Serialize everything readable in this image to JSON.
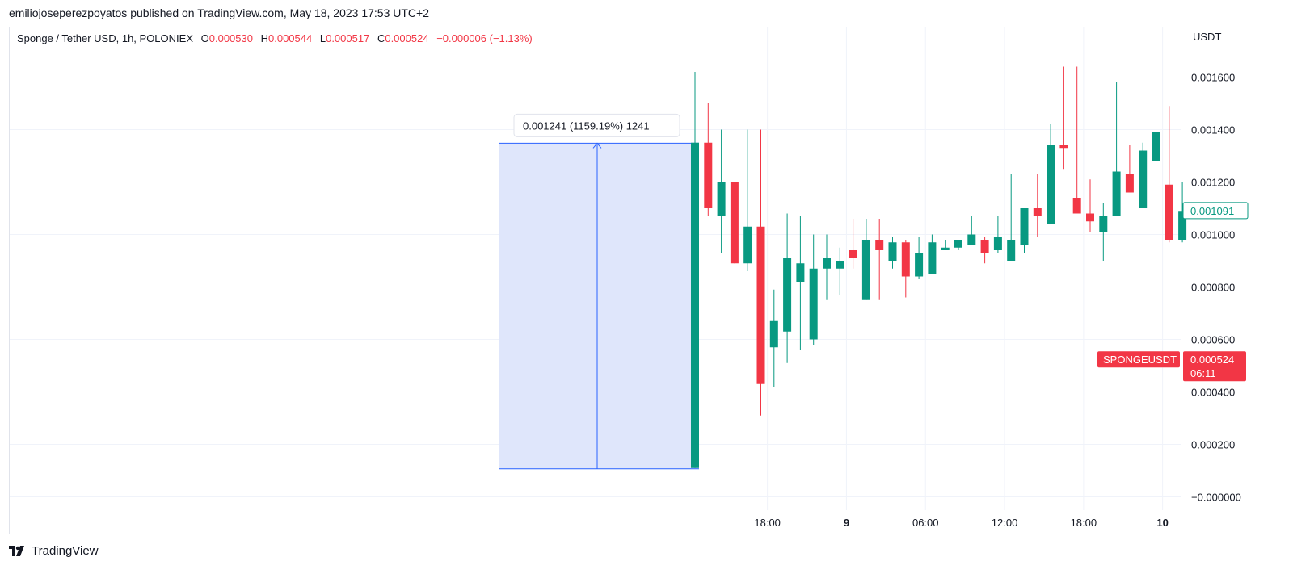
{
  "header": {
    "published_line": "emiliojoseperezpoyatos published on TradingView.com, May 18, 2023 17:53 UTC+2"
  },
  "legend": {
    "symbol": "Sponge / Tether USD, 1h, POLONIEX",
    "o_label": "O",
    "o_value": "0.000530",
    "h_label": "H",
    "h_value": "0.000544",
    "l_label": "L",
    "l_value": "0.000517",
    "c_label": "C",
    "c_value": "0.000524",
    "change": "−0.000006 (−1.13%)"
  },
  "currency_label": "USDT",
  "footer": {
    "brand": "TradingView",
    "logo_icon": "tradingview-logo-icon"
  },
  "colors": {
    "up": "#089981",
    "down": "#f23645",
    "measure_fill": "#dfe6fb",
    "measure_line": "#2962ff",
    "grid": "#f0f3fa",
    "text": "#131722"
  },
  "chart_data": {
    "type": "candlestick",
    "interval": "1h",
    "grid": true,
    "ylim": [
      -6e-05,
      0.00175
    ],
    "y_ticks": [
      0.0016,
      0.0014,
      0.0012,
      0.001,
      0.0008,
      0.0006,
      0.0004,
      0.0002,
      0.0
    ],
    "y_tick_labels": [
      "0.001600",
      "0.001400",
      "0.001200",
      "0.001000",
      "0.000800",
      "0.000600",
      "0.000400",
      "0.000200",
      "−0.000000"
    ],
    "x_ticks": [
      {
        "index": 5.5,
        "label": "18:00",
        "bold": false
      },
      {
        "index": 11.5,
        "label": "9",
        "bold": true
      },
      {
        "index": 17.5,
        "label": "06:00",
        "bold": false
      },
      {
        "index": 23.5,
        "label": "12:00",
        "bold": false
      },
      {
        "index": 29.5,
        "label": "18:00",
        "bold": false
      },
      {
        "index": 35.5,
        "label": "10",
        "bold": true
      }
    ],
    "candles": [
      {
        "o": 0.00011,
        "h": 0.00162,
        "l": 0.00011,
        "c": 0.00135
      },
      {
        "o": 0.00135,
        "h": 0.0015,
        "l": 0.00107,
        "c": 0.0011
      },
      {
        "o": 0.00107,
        "h": 0.0014,
        "l": 0.00093,
        "c": 0.0012
      },
      {
        "o": 0.0012,
        "h": 0.0012,
        "l": 0.00089,
        "c": 0.00089
      },
      {
        "o": 0.00089,
        "h": 0.0014,
        "l": 0.00086,
        "c": 0.00103
      },
      {
        "o": 0.00103,
        "h": 0.0014,
        "l": 0.00031,
        "c": 0.00043
      },
      {
        "o": 0.00057,
        "h": 0.00079,
        "l": 0.00042,
        "c": 0.00067
      },
      {
        "o": 0.00063,
        "h": 0.00108,
        "l": 0.00051,
        "c": 0.00091
      },
      {
        "o": 0.00082,
        "h": 0.00107,
        "l": 0.00056,
        "c": 0.00089
      },
      {
        "o": 0.0006,
        "h": 0.001,
        "l": 0.00058,
        "c": 0.00087
      },
      {
        "o": 0.00087,
        "h": 0.001,
        "l": 0.00075,
        "c": 0.00091
      },
      {
        "o": 0.00087,
        "h": 0.00095,
        "l": 0.00077,
        "c": 0.0009
      },
      {
        "o": 0.00094,
        "h": 0.00106,
        "l": 0.00087,
        "c": 0.00091
      },
      {
        "o": 0.00075,
        "h": 0.00106,
        "l": 0.00075,
        "c": 0.00098
      },
      {
        "o": 0.00098,
        "h": 0.00106,
        "l": 0.00075,
        "c": 0.00094
      },
      {
        "o": 0.0009,
        "h": 0.00099,
        "l": 0.00087,
        "c": 0.00097
      },
      {
        "o": 0.00097,
        "h": 0.00098,
        "l": 0.00076,
        "c": 0.00084
      },
      {
        "o": 0.00084,
        "h": 0.00099,
        "l": 0.00083,
        "c": 0.00093
      },
      {
        "o": 0.00085,
        "h": 0.001,
        "l": 0.00085,
        "c": 0.00097
      },
      {
        "o": 0.00094,
        "h": 0.00098,
        "l": 0.00094,
        "c": 0.00095
      },
      {
        "o": 0.00095,
        "h": 0.00098,
        "l": 0.00094,
        "c": 0.00098
      },
      {
        "o": 0.00096,
        "h": 0.00107,
        "l": 0.00096,
        "c": 0.001
      },
      {
        "o": 0.00098,
        "h": 0.00099,
        "l": 0.00089,
        "c": 0.00093
      },
      {
        "o": 0.00094,
        "h": 0.00107,
        "l": 0.00093,
        "c": 0.00099
      },
      {
        "o": 0.0009,
        "h": 0.00123,
        "l": 0.0009,
        "c": 0.00098
      },
      {
        "o": 0.00096,
        "h": 0.0011,
        "l": 0.00093,
        "c": 0.0011
      },
      {
        "o": 0.0011,
        "h": 0.00123,
        "l": 0.00099,
        "c": 0.00107
      },
      {
        "o": 0.00104,
        "h": 0.00142,
        "l": 0.00104,
        "c": 0.00134
      },
      {
        "o": 0.00134,
        "h": 0.00164,
        "l": 0.00125,
        "c": 0.00133
      },
      {
        "o": 0.00114,
        "h": 0.00164,
        "l": 0.00108,
        "c": 0.00108
      },
      {
        "o": 0.00108,
        "h": 0.00121,
        "l": 0.00101,
        "c": 0.00105
      },
      {
        "o": 0.00101,
        "h": 0.00112,
        "l": 0.0009,
        "c": 0.00107
      },
      {
        "o": 0.00107,
        "h": 0.00158,
        "l": 0.00107,
        "c": 0.00124
      },
      {
        "o": 0.00123,
        "h": 0.00134,
        "l": 0.00116,
        "c": 0.00116
      },
      {
        "o": 0.0011,
        "h": 0.00135,
        "l": 0.0011,
        "c": 0.00132
      },
      {
        "o": 0.00128,
        "h": 0.00142,
        "l": 0.00122,
        "c": 0.00139
      },
      {
        "o": 0.00119,
        "h": 0.00149,
        "l": 0.00097,
        "c": 0.00098
      },
      {
        "o": 0.00098,
        "h": 0.0012,
        "l": 0.00097,
        "c": 0.00109
      }
    ],
    "price_range_measure": {
      "from": 0.000107,
      "to": 0.001348,
      "label": "0.001241 (1159.19%) 1241"
    },
    "last_value_tag": {
      "value": 0.001091,
      "label": "0.001091"
    },
    "symbol_tag": {
      "name": "SPONGEUSDT",
      "value": 0.000524,
      "price_label": "0.000524",
      "countdown": "06:11"
    }
  }
}
